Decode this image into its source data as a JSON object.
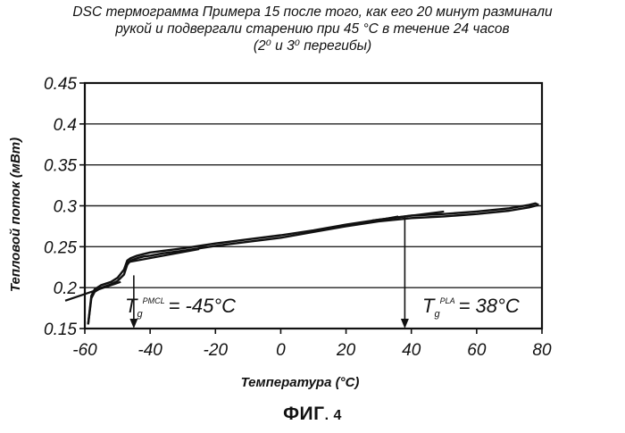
{
  "chart_data": {
    "type": "line",
    "title": [
      "DSC термограмма Примера 15 после того, как его 20 минут разминали",
      "рукой и подвергали старению при 45 °C в течение 24 часов",
      "(2⁰ и 3⁰ перегибы)"
    ],
    "xlabel": "Температура (°C)",
    "ylabel": "Тепловой поток (мВт)",
    "xlim": [
      -60,
      80
    ],
    "ylim": [
      0.15,
      0.45
    ],
    "x_ticks": [
      "-60",
      "-40",
      "-20",
      "0",
      "20",
      "40",
      "60",
      "80"
    ],
    "y_ticks": [
      "0.15",
      "0.2",
      "0.25",
      "0.3",
      "0.35",
      "0.4",
      "0.45"
    ],
    "x_tick_values": [
      -60,
      -40,
      -20,
      0,
      20,
      40,
      60,
      80
    ],
    "y_tick_values": [
      0.15,
      0.2,
      0.25,
      0.3,
      0.35,
      0.4,
      0.45
    ],
    "grid": "horizontal",
    "series": [
      {
        "name": "curve-upper",
        "x": [
          -59,
          -58,
          -57,
          -55,
          -52,
          -50,
          -48,
          -47,
          -46,
          -44,
          -42,
          -40,
          -36,
          -30,
          -20,
          -10,
          0,
          10,
          20,
          30,
          40,
          50,
          60,
          70,
          76,
          78,
          79
        ],
        "y": [
          0.155,
          0.19,
          0.198,
          0.203,
          0.207,
          0.212,
          0.222,
          0.233,
          0.236,
          0.239,
          0.241,
          0.243,
          0.245,
          0.248,
          0.254,
          0.259,
          0.264,
          0.27,
          0.277,
          0.283,
          0.288,
          0.29,
          0.293,
          0.297,
          0.301,
          0.303,
          0.301
        ]
      },
      {
        "name": "curve-lower",
        "x": [
          -59,
          -58,
          -57,
          -55,
          -52,
          -50,
          -48,
          -47,
          -46,
          -44,
          -42,
          -40,
          -36,
          -30,
          -20,
          -10,
          0,
          10,
          20,
          30,
          40,
          50,
          60,
          70,
          76,
          78,
          79
        ],
        "y": [
          0.155,
          0.187,
          0.195,
          0.2,
          0.204,
          0.208,
          0.216,
          0.228,
          0.233,
          0.236,
          0.238,
          0.239,
          0.242,
          0.245,
          0.251,
          0.256,
          0.261,
          0.268,
          0.275,
          0.281,
          0.285,
          0.287,
          0.29,
          0.294,
          0.298,
          0.3,
          0.301
        ]
      }
    ],
    "tangent_lines": [
      {
        "name": "tangent-glassy-low",
        "x": [
          -66,
          -49
        ],
        "y": [
          0.184,
          0.207
        ]
      },
      {
        "name": "tangent-rubbery-low",
        "x": [
          -47,
          -25
        ],
        "y": [
          0.231,
          0.247
        ]
      },
      {
        "name": "tangent-glassy-high",
        "x": [
          18,
          36
        ],
        "y": [
          0.274,
          0.287
        ]
      },
      {
        "name": "tangent-rubbery-high",
        "x": [
          28,
          50
        ],
        "y": [
          0.282,
          0.293
        ]
      }
    ],
    "annotations": [
      {
        "label": "T",
        "subscript": "g",
        "superscript": "PMCL",
        "text": "= -45°C",
        "x": -45,
        "y_from": 0.215,
        "y_to": 0.15
      },
      {
        "label": "T",
        "subscript": "g",
        "superscript": "PLA",
        "text": "= 38°C",
        "x": 38,
        "y_from": 0.286,
        "y_to": 0.15
      }
    ],
    "legend": "none"
  },
  "figure": {
    "label_main": "ФИГ",
    "label_num": ". 4"
  }
}
